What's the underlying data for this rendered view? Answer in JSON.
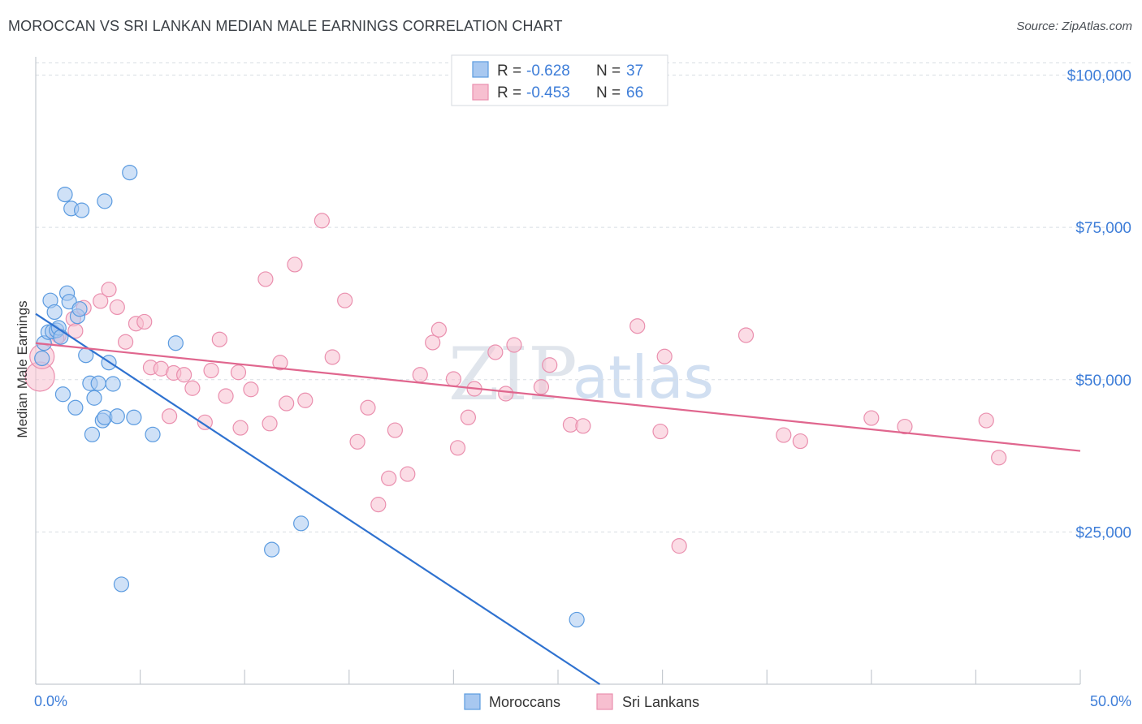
{
  "header": {
    "title": "MOROCCAN VS SRI LANKAN MEDIAN MALE EARNINGS CORRELATION CHART",
    "source": "Source: ZipAtlas.com"
  },
  "watermark": {
    "zip": "ZIP",
    "atlas": "atlas"
  },
  "colors": {
    "blue_fill": "#a8c8f0",
    "blue_stroke": "#5b9be0",
    "blue_line": "#2f72d0",
    "pink_fill": "#f7bfd0",
    "pink_stroke": "#ea8fae",
    "pink_line": "#e0668e",
    "grid": "#d8dde3",
    "axis_text": "#3d7dd8"
  },
  "legend": {
    "rows": [
      {
        "r_label": "R = ",
        "r_value": "-0.628",
        "n_label": "N = ",
        "n_value": "37"
      },
      {
        "r_label": "R = ",
        "r_value": "-0.453",
        "n_label": "N = ",
        "n_value": "66"
      }
    ]
  },
  "bottom_legend": [
    "Moroccans",
    "Sri Lankans"
  ],
  "chart_data": {
    "type": "scatter",
    "title": "MOROCCAN VS SRI LANKAN MEDIAN MALE EARNINGS CORRELATION CHART",
    "xlabel": "",
    "ylabel": "Median Male Earnings",
    "xlim": [
      0,
      50
    ],
    "ylim": [
      0,
      103000
    ],
    "x_tick_labels": [
      "0.0%",
      "50.0%"
    ],
    "y_ticks": [
      25000,
      50000,
      75000,
      100000
    ],
    "y_tick_labels": [
      "$25,000",
      "$50,000",
      "$75,000",
      "$100,000"
    ],
    "grid": true,
    "legend_position": "top-center",
    "series": [
      {
        "name": "Moroccans",
        "r": -0.628,
        "n": 37,
        "trend": {
          "x": [
            0.0,
            27.0
          ],
          "y": [
            60800,
            0
          ]
        },
        "points": [
          [
            0.3,
            53500
          ],
          [
            0.4,
            56000
          ],
          [
            0.6,
            57800
          ],
          [
            0.8,
            57900
          ],
          [
            1.0,
            58100
          ],
          [
            0.7,
            63000
          ],
          [
            0.9,
            61100
          ],
          [
            1.1,
            58500
          ],
          [
            1.2,
            57000
          ],
          [
            1.5,
            64200
          ],
          [
            1.6,
            62800
          ],
          [
            2.0,
            60400
          ],
          [
            2.1,
            61600
          ],
          [
            1.4,
            80400
          ],
          [
            1.7,
            78100
          ],
          [
            2.2,
            77800
          ],
          [
            3.3,
            79300
          ],
          [
            4.5,
            84000
          ],
          [
            1.3,
            47600
          ],
          [
            1.9,
            45400
          ],
          [
            2.4,
            54000
          ],
          [
            2.6,
            49400
          ],
          [
            2.8,
            47000
          ],
          [
            3.0,
            49400
          ],
          [
            3.5,
            52800
          ],
          [
            3.7,
            49300
          ],
          [
            2.7,
            41000
          ],
          [
            3.2,
            43300
          ],
          [
            3.3,
            43800
          ],
          [
            3.9,
            44000
          ],
          [
            4.7,
            43800
          ],
          [
            5.6,
            41000
          ],
          [
            6.7,
            56000
          ],
          [
            4.1,
            16400
          ],
          [
            11.3,
            22100
          ],
          [
            12.7,
            26400
          ],
          [
            25.9,
            10600
          ]
        ]
      },
      {
        "name": "Sri Lankans",
        "r": -0.453,
        "n": 66,
        "trend": {
          "x": [
            0.0,
            50.0
          ],
          "y": [
            56000,
            38300
          ]
        },
        "points": [
          [
            0.2,
            50500
          ],
          [
            0.3,
            53800
          ],
          [
            1.1,
            57200
          ],
          [
            1.8,
            60000
          ],
          [
            1.9,
            58000
          ],
          [
            2.3,
            61800
          ],
          [
            3.1,
            62900
          ],
          [
            3.5,
            64800
          ],
          [
            3.9,
            61900
          ],
          [
            4.3,
            56200
          ],
          [
            4.8,
            59200
          ],
          [
            5.2,
            59500
          ],
          [
            5.5,
            52000
          ],
          [
            6.0,
            51800
          ],
          [
            6.4,
            44000
          ],
          [
            6.6,
            51100
          ],
          [
            7.1,
            50800
          ],
          [
            7.5,
            48600
          ],
          [
            8.1,
            43000
          ],
          [
            8.4,
            51500
          ],
          [
            8.8,
            56600
          ],
          [
            9.1,
            47300
          ],
          [
            9.7,
            51200
          ],
          [
            9.8,
            42100
          ],
          [
            10.3,
            48400
          ],
          [
            11.0,
            66500
          ],
          [
            11.2,
            42800
          ],
          [
            11.7,
            52800
          ],
          [
            12.0,
            46100
          ],
          [
            12.4,
            68900
          ],
          [
            12.9,
            46600
          ],
          [
            13.7,
            76100
          ],
          [
            14.2,
            53700
          ],
          [
            14.8,
            63000
          ],
          [
            15.4,
            39800
          ],
          [
            15.9,
            45400
          ],
          [
            16.4,
            29500
          ],
          [
            16.9,
            33800
          ],
          [
            17.2,
            41700
          ],
          [
            17.8,
            34500
          ],
          [
            18.4,
            50800
          ],
          [
            19.0,
            56100
          ],
          [
            19.3,
            58200
          ],
          [
            20.0,
            50100
          ],
          [
            20.2,
            38800
          ],
          [
            20.7,
            43800
          ],
          [
            21.0,
            48500
          ],
          [
            22.0,
            54500
          ],
          [
            22.5,
            47700
          ],
          [
            22.9,
            55700
          ],
          [
            24.2,
            48800
          ],
          [
            24.6,
            52400
          ],
          [
            25.6,
            42600
          ],
          [
            26.2,
            42400
          ],
          [
            28.8,
            58800
          ],
          [
            29.9,
            41500
          ],
          [
            30.1,
            53800
          ],
          [
            30.8,
            22700
          ],
          [
            34.0,
            57300
          ],
          [
            35.8,
            40900
          ],
          [
            36.6,
            39900
          ],
          [
            40.0,
            43700
          ],
          [
            41.6,
            42300
          ],
          [
            45.5,
            43300
          ],
          [
            46.1,
            37200
          ],
          [
            1.0,
            56800
          ]
        ]
      }
    ]
  }
}
